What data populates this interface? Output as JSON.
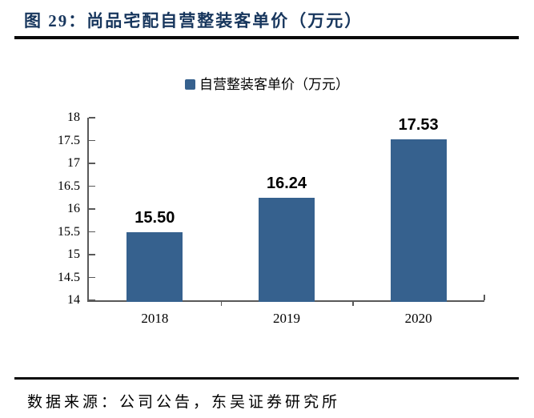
{
  "page": {
    "title": "图 29：尚品宅配自营整装客单价（万元）",
    "source": "数据来源：公司公告，东吴证券研究所"
  },
  "legend": {
    "label": "自营整装客单价（万元）",
    "swatch_color": "#36618E"
  },
  "colors": {
    "title_navy": "#17365D",
    "bar_blue": "#36618E",
    "axis_gray": "#595959",
    "rule_black": "#0a0a0a"
  },
  "chart_data": {
    "type": "bar",
    "title": "自营整装客单价（万元）",
    "categories": [
      "2018",
      "2019",
      "2020"
    ],
    "values": [
      15.5,
      16.24,
      17.53
    ],
    "value_labels": [
      "15.50",
      "16.24",
      "17.53"
    ],
    "xlabel": "",
    "ylabel": "",
    "ylim": [
      14,
      18
    ],
    "ytick_step": 0.5,
    "yticks": [
      18,
      17.5,
      17,
      16.5,
      16,
      15.5,
      15,
      14.5,
      14
    ],
    "ytick_labels": [
      "18",
      "17.5",
      "17",
      "16.5",
      "16",
      "15.5",
      "15",
      "14.5",
      "14"
    ],
    "grid": false,
    "legend_position": "top-center",
    "bar_color": "#36618E"
  }
}
